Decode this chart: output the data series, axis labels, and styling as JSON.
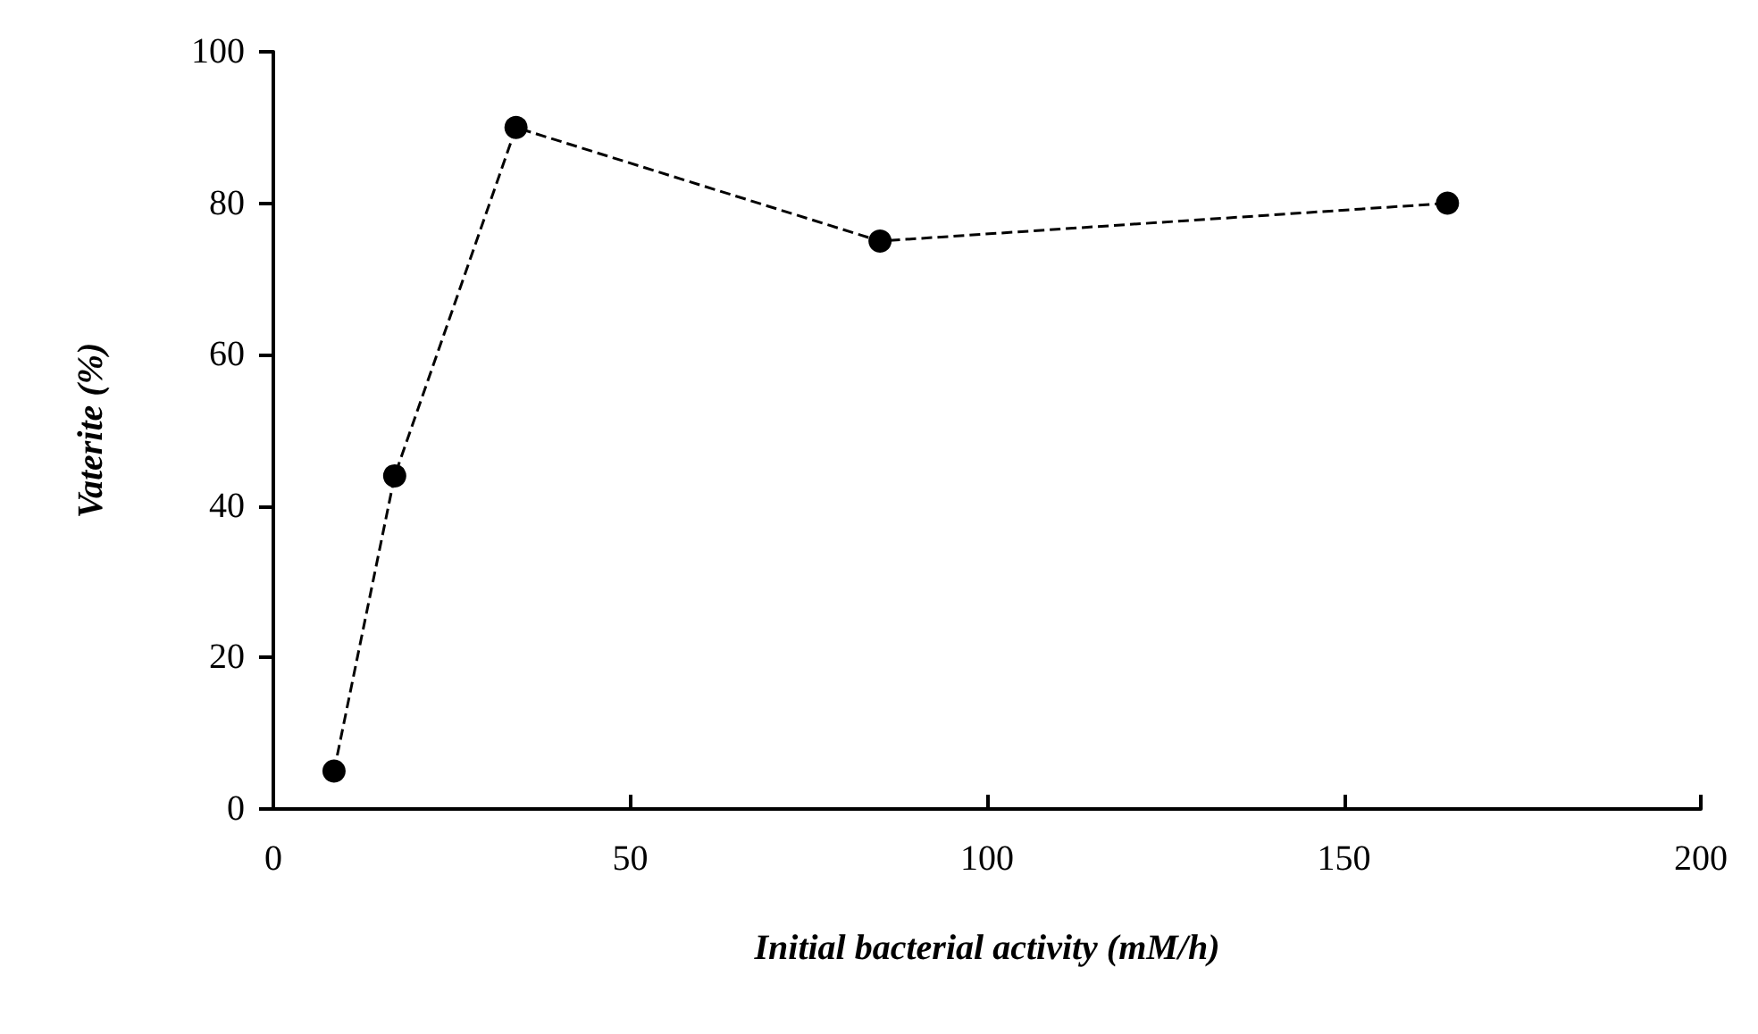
{
  "chart_data": {
    "type": "line",
    "xlabel": "Initial bacterial activity (mM/h)",
    "ylabel": "Vaterite (%)",
    "x": [
      8.5,
      17,
      34,
      85,
      164.5
    ],
    "series": [
      {
        "color": "#000000",
        "values": [
          5,
          44,
          90,
          75,
          80
        ]
      }
    ],
    "xlim": [
      0,
      200
    ],
    "xticks": [
      0,
      50,
      100,
      150,
      200
    ],
    "ylim": [
      0,
      100
    ],
    "yticks": [
      0,
      20,
      40,
      60,
      80,
      100
    ],
    "marker": "circle",
    "line_style": "dashed"
  }
}
